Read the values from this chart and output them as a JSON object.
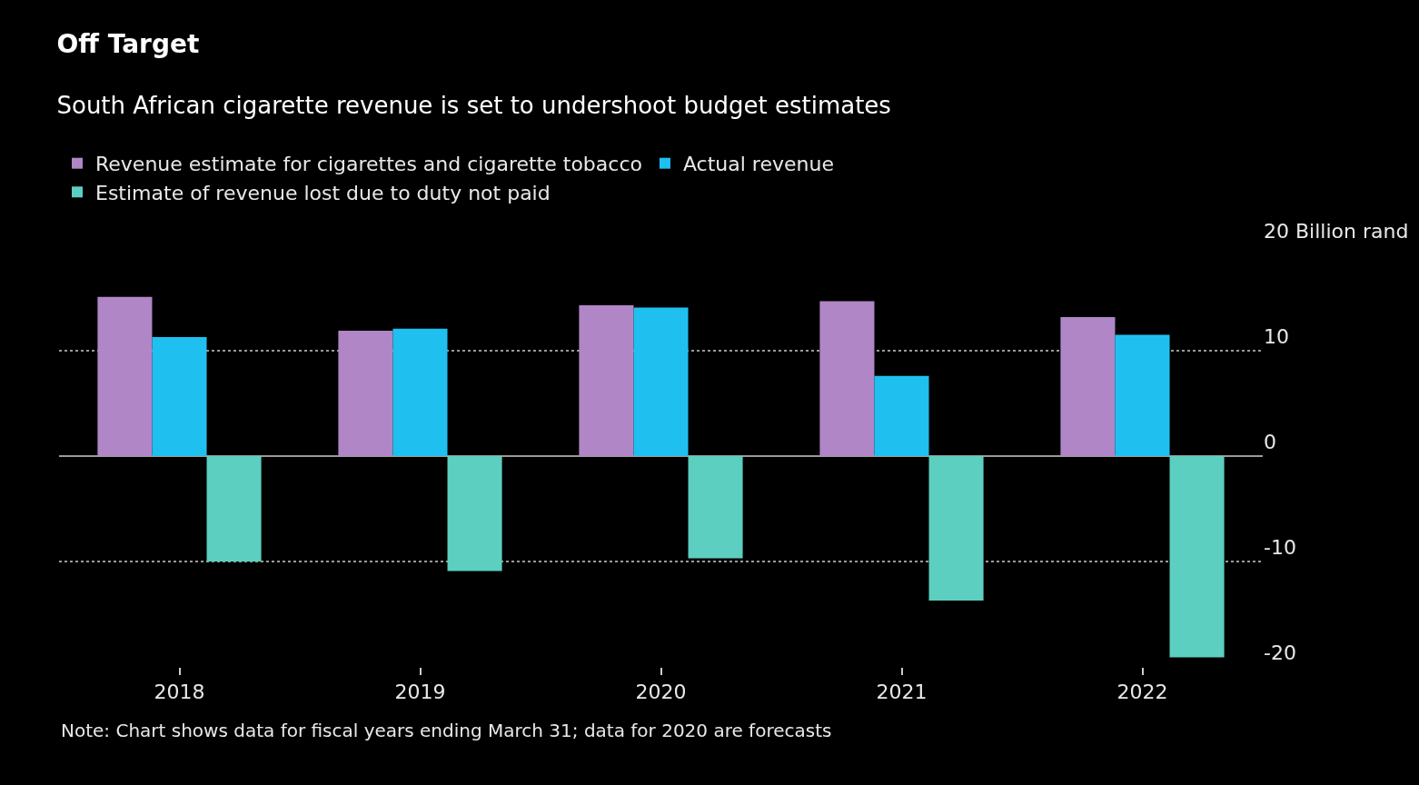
{
  "chart_data": {
    "type": "bar",
    "title": "Off Target",
    "subtitle": "South African cigarette revenue is set to undershoot budget estimates",
    "categories": [
      "2018",
      "2019",
      "2020",
      "2021",
      "2022"
    ],
    "series": [
      {
        "name": "Revenue estimate for cigarettes and cigarette tobacco",
        "color": "#b086c6",
        "values": [
          15.1,
          11.9,
          14.3,
          14.7,
          13.2
        ]
      },
      {
        "name": "Actual revenue",
        "color": "#1fc0f0",
        "values": [
          11.3,
          12.1,
          14.1,
          7.6,
          11.5
        ]
      },
      {
        "name": "Estimate of revenue lost due to duty not paid",
        "color": "#5ccfc0",
        "values": [
          -10.0,
          -10.9,
          -9.7,
          -13.7,
          -19.1
        ]
      }
    ],
    "ylim": [
      -20,
      20
    ],
    "yticks": [
      {
        "value": 20,
        "label": "20 Billion rand"
      },
      10,
      0,
      -10,
      -20
    ],
    "grid": "y",
    "legend": "top left",
    "annotations": [
      "Note: Chart shows data for fiscal years ending March 31; data for 2020 are forecasts"
    ]
  }
}
